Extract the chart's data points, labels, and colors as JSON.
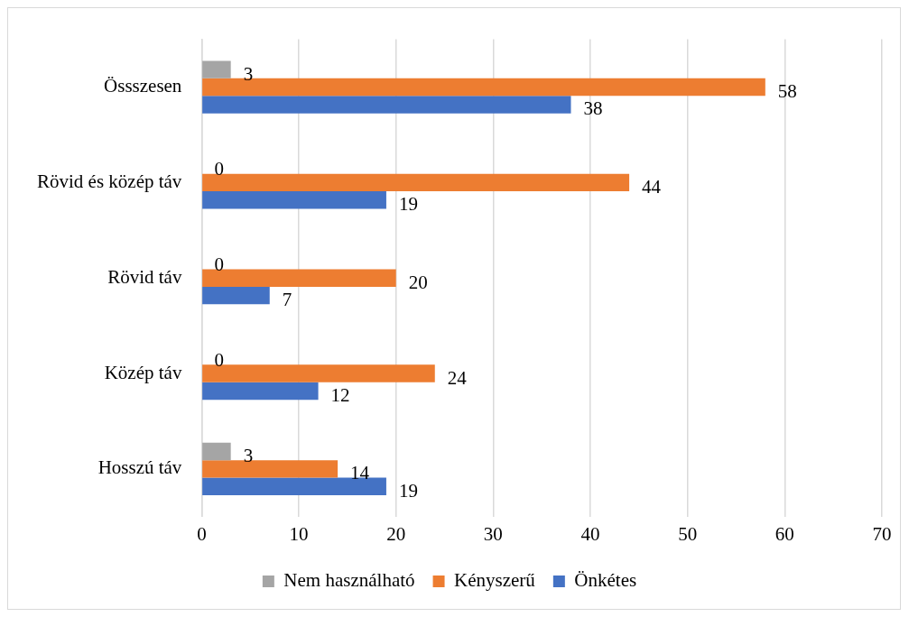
{
  "chart_data": {
    "type": "bar",
    "orientation": "horizontal",
    "categories": [
      "Össszesen",
      "Rövid és közép táv",
      "Rövid táv",
      "Közép táv",
      "Hosszú táv"
    ],
    "series": [
      {
        "name": "Nem használható",
        "color": "#a5a5a5",
        "values": [
          3,
          0,
          0,
          0,
          3
        ]
      },
      {
        "name": "Kényszerű",
        "color": "#ed7d31",
        "values": [
          58,
          44,
          20,
          24,
          14
        ]
      },
      {
        "name": "Önkétes",
        "color": "#4472c4",
        "values": [
          38,
          19,
          7,
          12,
          19
        ]
      }
    ],
    "xlim": [
      0,
      70
    ],
    "xticks": [
      0,
      10,
      20,
      30,
      40,
      50,
      60,
      70
    ],
    "grid": "x",
    "legend": "bottom",
    "data_labels": true
  }
}
